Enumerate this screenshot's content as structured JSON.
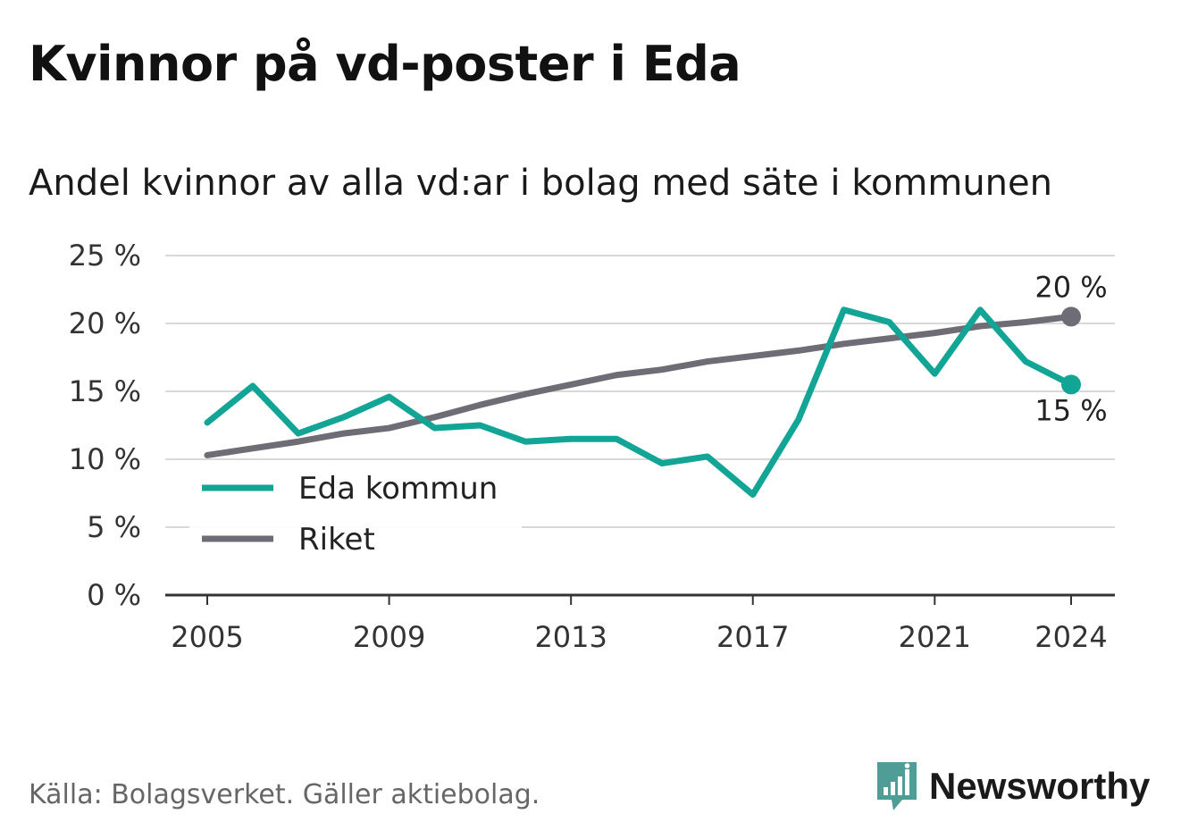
{
  "title": "Kvinnor på vd-poster i Eda",
  "subtitle": "Andel kvinnor av alla vd:ar i bolag med säte i kommunen",
  "source": "Källa: Bolagsverket. Gäller aktiebolag.",
  "brand": {
    "name": "Newsworthy",
    "icon": "newsworthy-logo-icon",
    "color": "#4f9d96"
  },
  "chart_data": {
    "type": "line",
    "x": [
      2005,
      2006,
      2007,
      2008,
      2009,
      2010,
      2011,
      2012,
      2013,
      2014,
      2015,
      2016,
      2017,
      2018,
      2019,
      2020,
      2021,
      2022,
      2023,
      2024
    ],
    "series": [
      {
        "name": "Eda kommun",
        "color": "#12a596",
        "values": [
          12.7,
          15.4,
          11.9,
          13.1,
          14.6,
          12.3,
          12.5,
          11.3,
          11.5,
          11.5,
          9.7,
          10.2,
          7.4,
          12.9,
          21.0,
          20.1,
          16.3,
          21.0,
          17.2,
          15.5
        ]
      },
      {
        "name": "Riket",
        "color": "#6e6d75",
        "values": [
          10.3,
          10.8,
          11.3,
          11.9,
          12.3,
          13.1,
          14.0,
          14.8,
          15.5,
          16.2,
          16.6,
          17.2,
          17.6,
          18.0,
          18.5,
          18.9,
          19.3,
          19.8,
          20.1,
          20.5
        ]
      }
    ],
    "ylim": [
      0,
      25
    ],
    "yticks": [
      0,
      5,
      10,
      15,
      20,
      25
    ],
    "ytick_labels": [
      "0 %",
      "5 %",
      "10 %",
      "15 %",
      "20 %",
      "25 %"
    ],
    "xlim": [
      2004,
      2025
    ],
    "xticks": [
      2005,
      2009,
      2013,
      2017,
      2021,
      2024
    ],
    "xtick_labels": [
      "2005",
      "2009",
      "2013",
      "2017",
      "2021",
      "2024"
    ],
    "end_labels": [
      {
        "series": "Riket",
        "text": "20 %"
      },
      {
        "series": "Eda kommun",
        "text": "15 %"
      }
    ],
    "grid": "horizontal",
    "legend_position": "left"
  }
}
